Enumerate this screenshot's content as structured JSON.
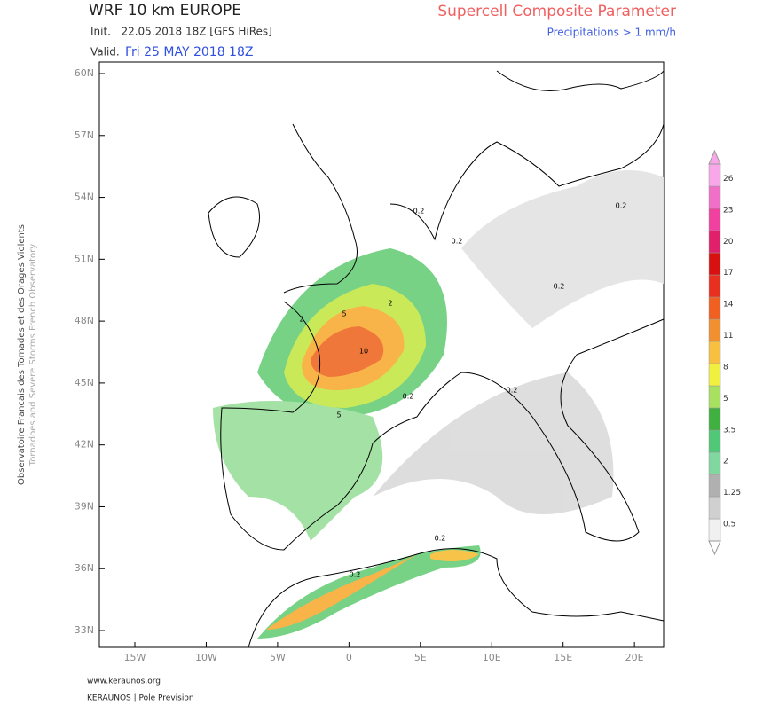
{
  "header": {
    "title": "WRF 10 km EUROPE",
    "init": "Init.   22.05.2018 18Z [GFS HiRes]",
    "valid_label": "Valid.",
    "valid_time": "Fri 25 MAY 2018 18Z",
    "parameter": "Supercell Composite Parameter",
    "precip_note": "Precipitations > 1 mm/h"
  },
  "map": {
    "lat_ticks": [
      {
        "value": 60,
        "label": "60N"
      },
      {
        "value": 57,
        "label": "57N"
      },
      {
        "value": 54,
        "label": "54N"
      },
      {
        "value": 51,
        "label": "51N"
      },
      {
        "value": 48,
        "label": "48N"
      },
      {
        "value": 45,
        "label": "45N"
      },
      {
        "value": 42,
        "label": "42N"
      },
      {
        "value": 39,
        "label": "39N"
      },
      {
        "value": 36,
        "label": "36N"
      },
      {
        "value": 33,
        "label": "33N"
      }
    ],
    "lon_ticks": [
      {
        "value": -15,
        "label": "15W"
      },
      {
        "value": -10,
        "label": "10W"
      },
      {
        "value": -5,
        "label": "5W"
      },
      {
        "value": 0,
        "label": "0"
      },
      {
        "value": 5,
        "label": "5E"
      },
      {
        "value": 10,
        "label": "10E"
      },
      {
        "value": 15,
        "label": "15E"
      },
      {
        "value": 20,
        "label": "20E"
      }
    ],
    "contour_labels": [
      "10",
      "5",
      "5",
      "2",
      "2",
      "0.2",
      "0.2",
      "0.2",
      "0.2",
      "0.2",
      "0.2",
      "0.2",
      "0.2"
    ]
  },
  "colorbar": {
    "labels": [
      "0.5",
      "1.25",
      "2",
      "3.5",
      "5",
      "8",
      "11",
      "14",
      "17",
      "20",
      "23",
      "26"
    ],
    "colors": [
      "#f0f0f0",
      "#d0d0d0",
      "#b0b0b0",
      "#80d8a0",
      "#50c878",
      "#40b040",
      "#a8e060",
      "#f0f040",
      "#f8c040",
      "#f09030",
      "#f06020",
      "#e83020",
      "#d81010",
      "#e0206a",
      "#f040a0",
      "#f070c8",
      "#f8a8e8"
    ]
  },
  "side": {
    "line1": "Observatoire Francais des Tornades et des Orages Violents",
    "line2": "Tornadoes and Severe Storms French Observatory"
  },
  "footer": {
    "site": "www.keraunos.org",
    "brand": "KERAUNOS | Pole Prevision"
  }
}
